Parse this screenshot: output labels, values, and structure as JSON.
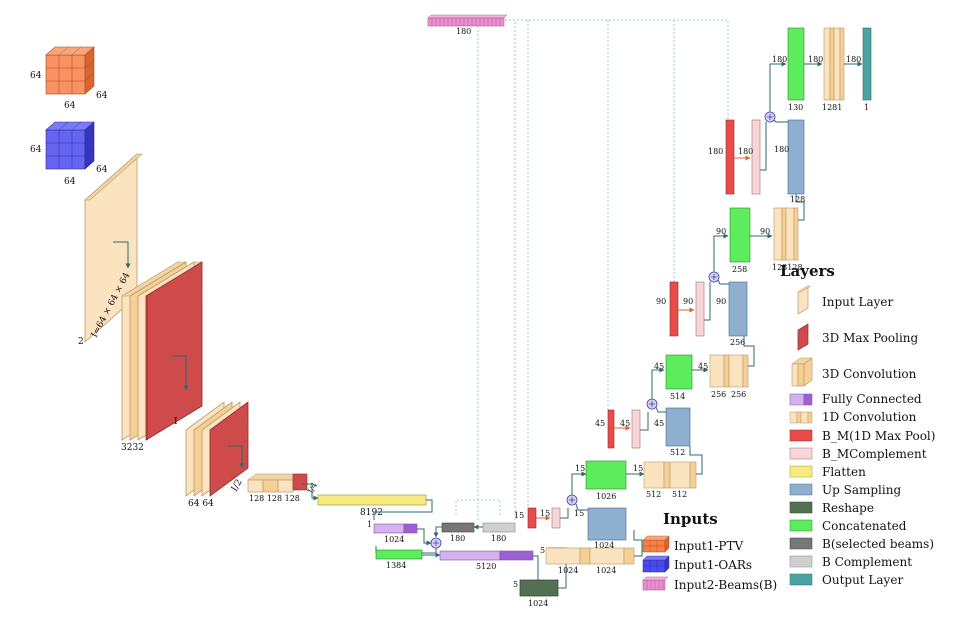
{
  "colors": {
    "input_layer": "#fbe3bf",
    "max_pool_3d": "#cf4b4b",
    "conv3d": "#f6cf95",
    "fully_connected": "#b584e0",
    "conv1d": "#f8cf98",
    "bm_maxpool": "#e94b4b",
    "bm_complement": "#f6d6d6",
    "flatten": "#f7ea80",
    "up_sampling": "#8fafd0",
    "reshape": "#547052",
    "concatenated": "#5cec5c",
    "b_selected": "#777777",
    "b_complement": "#cfcfcf",
    "output_layer": "#4aa3a3",
    "ptv": "#f77f48",
    "oars": "#4a4af0",
    "beams": "#ec8fd0",
    "connector": "#2e6b6b"
  },
  "labels": {
    "ptv_h": "64",
    "ptv_w": "64",
    "ptv_d": "64",
    "oar_h": "64",
    "oar_w": "64",
    "oar_d": "64",
    "input_c": "2",
    "input_dim": "I=64 × 64 × 64",
    "block1_c": "3232",
    "block1_s": "I",
    "block2_c": "64 64",
    "block2_s": "I/2",
    "conv_small": "128 128 128",
    "conv_small_s": "I/4",
    "flatten": "8192",
    "fc1_a": "1",
    "fc1_b": "1024",
    "fc2": "1384",
    "fc3": "5120",
    "bsel": "180",
    "bcomp": "180",
    "beams_top": "180",
    "reshape_a": "5",
    "reshape_b": "1024",
    "c1_a": "5",
    "c1_b": "1024",
    "c1_c": "1024",
    "u1_a": "15",
    "u1_b": "1024",
    "m1": "15",
    "m1c": "15",
    "cat1_a": "15",
    "cat1_b": "1026",
    "c2_a": "15",
    "c2_b": "512",
    "c2_c": "512",
    "u2_a": "45",
    "u2_b": "512",
    "m2": "45",
    "m2c": "45",
    "cat2_a": "45",
    "cat2_b": "514",
    "c3_a": "45",
    "c3_b": "256",
    "c3_c": "256",
    "u3_a": "90",
    "u3_b": "256",
    "m3": "90",
    "m3c": "90",
    "cat3_a": "90",
    "cat3_b": "258",
    "c4_a": "90",
    "c4_b": "128128",
    "u4_a": "180",
    "u4_b": "128",
    "m4": "180",
    "m4c": "180",
    "cat4_a": "180",
    "cat4_b": "130",
    "c5_a": "180",
    "c5_b": "1281",
    "out_a": "180",
    "out_b": "1"
  },
  "legend": {
    "layers_title": "Layers",
    "items": [
      "Input Layer",
      "3D Max Pooling",
      "3D Convolution",
      "Fully Connected",
      "1D Convolution",
      "B_M(1D Max Pool)",
      "B_MComplement",
      "Flatten",
      "Up Sampling",
      "Reshape",
      "Concatenated",
      "B(selected beams)",
      "B Complement",
      "Output Layer"
    ],
    "inputs_title": "Inputs",
    "inputs": [
      "Input1-PTV",
      "Input1-OARs",
      "Input2-Beams(B)"
    ]
  }
}
